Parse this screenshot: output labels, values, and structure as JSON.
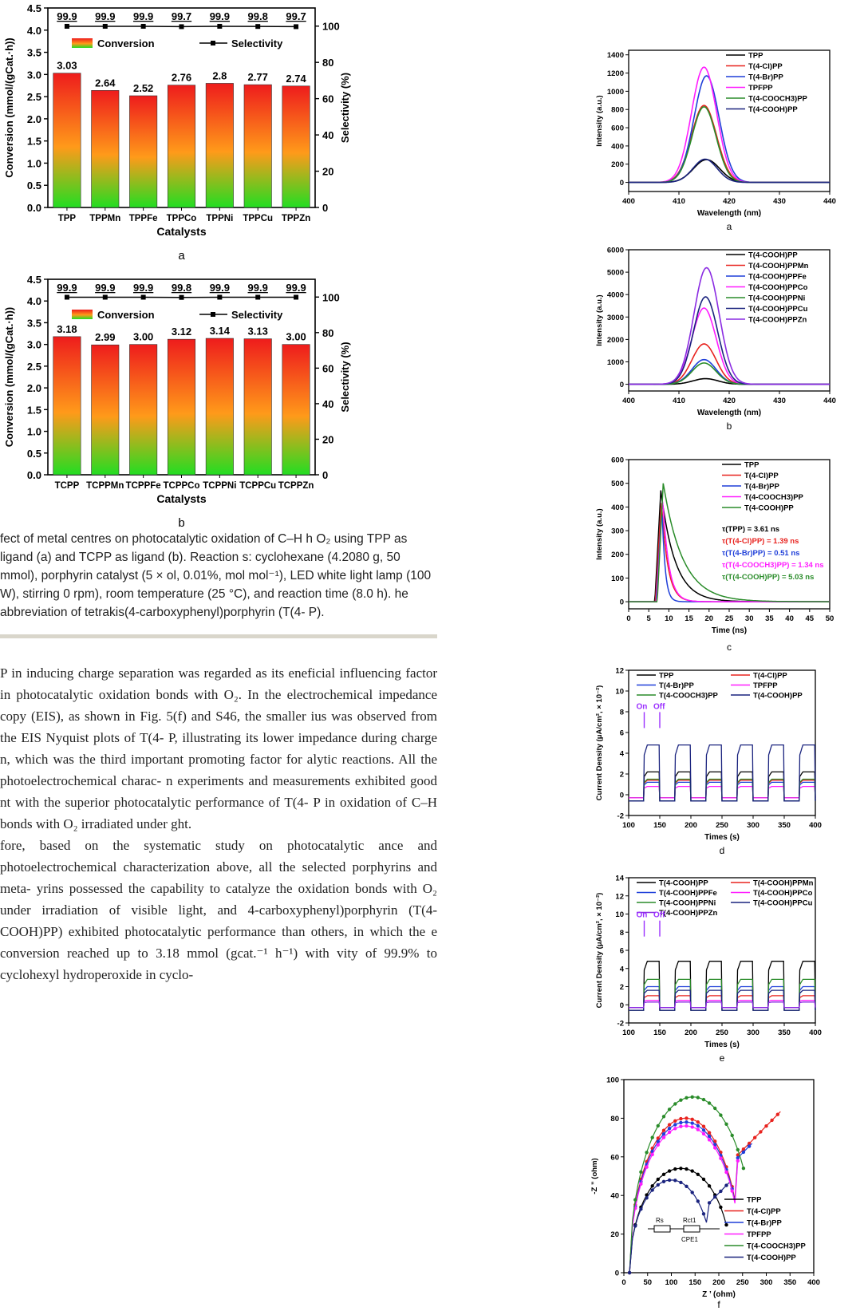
{
  "figure_left": {
    "panels": [
      {
        "letter": "a",
        "xlabel": "Catalysts",
        "ylabel_left": "Conversion (mmol/(gCat.·h))",
        "ylabel_right": "Selectivity (%)",
        "legend": [
          "Conversion",
          "Selectivity"
        ],
        "chart_data": {
          "type": "bar",
          "categories": [
            "TPP",
            "TPPMn",
            "TPPFe",
            "TPPCo",
            "TPPNi",
            "TPPCu",
            "TPPZn"
          ],
          "series": [
            {
              "name": "Conversion",
              "values": [
                3.03,
                2.64,
                2.52,
                2.76,
                2.8,
                2.77,
                2.74
              ]
            },
            {
              "name": "Selectivity",
              "values": [
                99.9,
                99.9,
                99.9,
                99.7,
                99.9,
                99.8,
                99.7
              ]
            }
          ],
          "conversion_labels": [
            "3.03",
            "2.64",
            "2.52",
            "2.76",
            "2.8",
            "2.77",
            "2.74"
          ],
          "selectivity_labels": [
            "99.9",
            "99.9",
            "99.9",
            "99.7",
            "99.9",
            "99.8",
            "99.7"
          ],
          "ylim": [
            0,
            4.5
          ],
          "y2lim": [
            0,
            110
          ],
          "yticks": [
            "0.0",
            "0.5",
            "1.0",
            "1.5",
            "2.0",
            "2.5",
            "3.0",
            "3.5",
            "4.0",
            "4.5"
          ],
          "y2ticks": [
            "0",
            "20",
            "40",
            "60",
            "80",
            "100"
          ]
        }
      },
      {
        "letter": "b",
        "xlabel": "Catalysts",
        "ylabel_left": "Conversion (mmol/(gCat.·h))",
        "ylabel_right": "Selectivity (%)",
        "legend": [
          "Conversion",
          "Selectivity"
        ],
        "chart_data": {
          "type": "bar",
          "categories": [
            "TCPP",
            "TCPPMn",
            "TCPPFe",
            "TCPPCo",
            "TCPPNi",
            "TCPPCu",
            "TCPPZn"
          ],
          "series": [
            {
              "name": "Conversion",
              "values": [
                3.18,
                2.99,
                3.0,
                3.12,
                3.14,
                3.13,
                3.0
              ]
            },
            {
              "name": "Selectivity",
              "values": [
                99.9,
                99.9,
                99.9,
                99.8,
                99.9,
                99.9,
                99.9
              ]
            }
          ],
          "conversion_labels": [
            "3.18",
            "2.99",
            "3.00",
            "3.12",
            "3.14",
            "3.13",
            "3.00"
          ],
          "selectivity_labels": [
            "99.9",
            "99.9",
            "99.9",
            "99.8",
            "99.9",
            "99.9",
            "99.9"
          ],
          "ylim": [
            0,
            4.5
          ],
          "y2lim": [
            0,
            110
          ],
          "yticks": [
            "0.0",
            "0.5",
            "1.0",
            "1.5",
            "2.0",
            "2.5",
            "3.0",
            "3.5",
            "4.0",
            "4.5"
          ],
          "y2ticks": [
            "0",
            "20",
            "40",
            "60",
            "80",
            "100"
          ]
        }
      }
    ]
  },
  "caption": "fect of metal centres on photocatalytic oxidation of C–H h O₂ using TPP as ligand (a) and TCPP as ligand (b). Reaction s: cyclohexane (4.2080 g, 50 mmol), porphyrin catalyst (5 × ol, 0.01%, mol mol⁻¹), LED white light lamp (100 W), stirring 0 rpm), room temperature (25 °C), and reaction time (8.0 h). he abbreviation of tetrakis(4-carboxyphenyl)porphyrin (T(4- P).",
  "body_text": [
    "P in inducing charge separation was regarded as its eneficial influencing factor in photocatalytic oxidation bonds with O₂. In the electrochemical impedance copy (EIS), as shown in Fig. 5(f) and S46, the smaller ius was observed from the EIS Nyquist plots of T(4- P, illustrating its lower impedance during charge n, which was the third important promoting factor for alytic reactions. All the photoelectrochemical charac- n experiments and measurements exhibited good nt with the superior photocatalytic performance of T(4- P in oxidation of C–H bonds with O₂ irradiated under ght.",
    "fore, based on the systematic study on photocatalytic ance and photoelectrochemical characterization above, all the selected porphyrins and meta- yrins possessed the capability to catalyze the oxidation bonds with O₂ under irradiation of visible light, and 4-carboxyphenyl)porphyrin (T(4-COOH)PP) exhibited photocatalytic performance than others, in which the e conversion reached up to 3.18 mmol (gcat.⁻¹ h⁻¹) with vity of 99.9% to cyclohexyl hydroperoxide in cyclo-"
  ],
  "figure_right": {
    "a": {
      "letter": "a",
      "xlabel": "Wavelength (nm)",
      "ylabel": "Intensity (a.u.)",
      "chart_data": {
        "type": "line",
        "xlim": [
          400,
          440
        ],
        "ylim": [
          -100,
          1450
        ],
        "xticks": [
          "400",
          "410",
          "420",
          "430",
          "440"
        ],
        "yticks": [
          "0",
          "200",
          "400",
          "600",
          "800",
          "1000",
          "1200",
          "1400"
        ],
        "series": [
          {
            "name": "TPP",
            "color": "#000000",
            "peak": 250,
            "center": 415.5,
            "width": 2.6
          },
          {
            "name": "T(4-Cl)PP",
            "color": "#e8231f",
            "peak": 845,
            "center": 415.0,
            "width": 2.5
          },
          {
            "name": "T(4-Br)PP",
            "color": "#1f3fd9",
            "peak": 1170,
            "center": 415.5,
            "width": 2.5
          },
          {
            "name": "TPFPP",
            "color": "#ff1cff",
            "peak": 1265,
            "center": 415.0,
            "width": 2.5
          },
          {
            "name": "T(4-COOCH3)PP",
            "color": "#2a8c2a",
            "peak": 830,
            "center": 415.0,
            "width": 2.4
          },
          {
            "name": "T(4-COOH)PP",
            "color": "#1a237e",
            "peak": 255,
            "center": 415.2,
            "width": 2.4
          }
        ]
      }
    },
    "b": {
      "letter": "b",
      "xlabel": "Wavelength (nm)",
      "ylabel": "Intensity (a.u.)",
      "chart_data": {
        "type": "line",
        "xlim": [
          400,
          440
        ],
        "ylim": [
          -300,
          6000
        ],
        "xticks": [
          "400",
          "410",
          "420",
          "430",
          "440"
        ],
        "yticks": [
          "0",
          "1000",
          "2000",
          "3000",
          "4000",
          "5000",
          "6000"
        ],
        "series": [
          {
            "name": "T(4-COOH)PP",
            "color": "#000000",
            "peak": 250,
            "center": 415.3,
            "width": 2.5
          },
          {
            "name": "T(4-COOH)PPMn",
            "color": "#e8231f",
            "peak": 1800,
            "center": 415.0,
            "width": 2.4
          },
          {
            "name": "T(4-COOH)PPFe",
            "color": "#1f3fd9",
            "peak": 1100,
            "center": 415.0,
            "width": 2.4
          },
          {
            "name": "T(4-COOH)PPCo",
            "color": "#ff1cff",
            "peak": 3400,
            "center": 415.0,
            "width": 2.4
          },
          {
            "name": "T(4-COOH)PPNi",
            "color": "#2a8c2a",
            "peak": 950,
            "center": 415.0,
            "width": 2.4
          },
          {
            "name": "T(4-COOH)PPCu",
            "color": "#1a237e",
            "peak": 3900,
            "center": 415.3,
            "width": 2.4
          },
          {
            "name": "T(4-COOH)PPZn",
            "color": "#8a2be2",
            "peak": 5200,
            "center": 415.5,
            "width": 2.5
          }
        ]
      }
    },
    "c": {
      "letter": "c",
      "xlabel": "Time (ns)",
      "ylabel": "Intensity (a.u.)",
      "annotations": [
        {
          "text": "τ(TPP) = 3.61 ns",
          "color": "#000000"
        },
        {
          "text": "τ(T(4-Cl)PP) = 1.39 ns",
          "color": "#e8231f"
        },
        {
          "text": "τ(T(4-Br)PP) = 0.51 ns",
          "color": "#1f3fd9"
        },
        {
          "text": "τ(T(4-COOCH3)PP) = 1.34 ns",
          "color": "#ff1cff"
        },
        {
          "text": "τ(T(4-COOH)PP) = 5.03 ns",
          "color": "#2a8c2a"
        }
      ],
      "chart_data": {
        "type": "line",
        "xlim": [
          0,
          50
        ],
        "ylim": [
          -30,
          600
        ],
        "xticks": [
          "0",
          "5",
          "10",
          "15",
          "20",
          "25",
          "30",
          "35",
          "40",
          "45",
          "50"
        ],
        "yticks": [
          "0",
          "100",
          "200",
          "300",
          "400",
          "500",
          "600"
        ],
        "series": [
          {
            "name": "TPP",
            "color": "#000000",
            "peak": 470,
            "tau": 3.61
          },
          {
            "name": "T(4-Cl)PP",
            "color": "#e8231f",
            "peak": 430,
            "tau": 1.39
          },
          {
            "name": "T(4-Br)PP",
            "color": "#1f3fd9",
            "peak": 400,
            "tau": 0.51
          },
          {
            "name": "T(4-COOCH3)PP",
            "color": "#ff1cff",
            "peak": 440,
            "tau": 1.34
          },
          {
            "name": "T(4-COOH)PP",
            "color": "#2a8c2a",
            "peak": 500,
            "tau": 5.03
          }
        ]
      }
    },
    "d": {
      "letter": "d",
      "xlabel": "Times (s)",
      "ylabel": "Current Density (μA/cm², × 10⁻²)",
      "on_label": "On",
      "off_label": "Off",
      "chart_data": {
        "type": "line",
        "xlim": [
          100,
          400
        ],
        "ylim": [
          -2,
          12
        ],
        "xticks": [
          "100",
          "150",
          "200",
          "250",
          "300",
          "350",
          "400"
        ],
        "yticks": [
          "-2",
          "0",
          "2",
          "4",
          "6",
          "8",
          "10",
          "12"
        ],
        "series": [
          {
            "name": "TPP",
            "color": "#000000",
            "level": 2.2
          },
          {
            "name": "T(4-Cl)PP",
            "color": "#e8231f",
            "level": 1.4
          },
          {
            "name": "T(4-Br)PP",
            "color": "#1f3fd9",
            "level": 1.2
          },
          {
            "name": "TPFPP",
            "color": "#ff1cff",
            "level": 0.8
          },
          {
            "name": "T(4-COOCH3)PP",
            "color": "#2a8c2a",
            "level": 1.5
          },
          {
            "name": "T(4-COOH)PP",
            "color": "#1a237e",
            "level": 4.8
          }
        ]
      }
    },
    "e": {
      "letter": "e",
      "xlabel": "Times (s)",
      "ylabel": "Current Density (μA/cm², × 10⁻²)",
      "on_label": "On",
      "off_label": "Off",
      "chart_data": {
        "type": "line",
        "xlim": [
          100,
          400
        ],
        "ylim": [
          -2,
          14
        ],
        "xticks": [
          "100",
          "150",
          "200",
          "250",
          "300",
          "350",
          "400"
        ],
        "yticks": [
          "-2",
          "0",
          "2",
          "4",
          "6",
          "8",
          "10",
          "12",
          "14"
        ],
        "series": [
          {
            "name": "T(4-COOH)PP",
            "color": "#000000",
            "level": 4.8
          },
          {
            "name": "T(4-COOH)PPMn",
            "color": "#e8231f",
            "level": 1.0
          },
          {
            "name": "T(4-COOH)PPFe",
            "color": "#1f3fd9",
            "level": 2.0
          },
          {
            "name": "T(4-COOH)PPCo",
            "color": "#ff1cff",
            "level": 0.5
          },
          {
            "name": "T(4-COOH)PPNi",
            "color": "#2a8c2a",
            "level": 2.8
          },
          {
            "name": "T(4-COOH)PPCu",
            "color": "#1a237e",
            "level": 1.6
          },
          {
            "name": "T(4-COOH)PPZn",
            "color": "#8a2be2",
            "level": 0.3
          }
        ]
      }
    },
    "f": {
      "letter": "f",
      "xlabel": "Z ’ (ohm)",
      "ylabel": "-Z ” (ohm)",
      "circuit": {
        "rs": "Rs",
        "rct": "Rct1",
        "cpe": "CPE1"
      },
      "chart_data": {
        "type": "scatter",
        "xlim": [
          0,
          400
        ],
        "ylim": [
          0,
          100
        ],
        "xticks": [
          "0",
          "50",
          "100",
          "150",
          "200",
          "250",
          "300",
          "350",
          "400"
        ],
        "yticks": [
          "0",
          "20",
          "40",
          "60",
          "80",
          "100"
        ],
        "series": [
          {
            "name": "TPP",
            "color": "#000000",
            "marker": "square",
            "arc_peak": 54,
            "arc_center": 120,
            "end_x": 220
          },
          {
            "name": "T(4-Cl)PP",
            "color": "#e8231f",
            "marker": "circle",
            "arc_peak": 80,
            "arc_center": 130,
            "end_x": 330
          },
          {
            "name": "T(4-Br)PP",
            "color": "#1f3fd9",
            "marker": "triangle",
            "arc_peak": 78,
            "arc_center": 130,
            "end_x": 270
          },
          {
            "name": "TPFPP",
            "color": "#ff1cff",
            "marker": "triangle-down",
            "arc_peak": 76,
            "arc_center": 130,
            "end_x": 240
          },
          {
            "name": "T(4-COOCH3)PP",
            "color": "#2a8c2a",
            "marker": "diamond",
            "arc_peak": 91,
            "arc_center": 145,
            "end_x": 255
          },
          {
            "name": "T(4-COOH)PP",
            "color": "#1a237e",
            "marker": "triangle-left",
            "arc_peak": 48,
            "arc_center": 100,
            "end_x": 225
          }
        ]
      }
    }
  }
}
